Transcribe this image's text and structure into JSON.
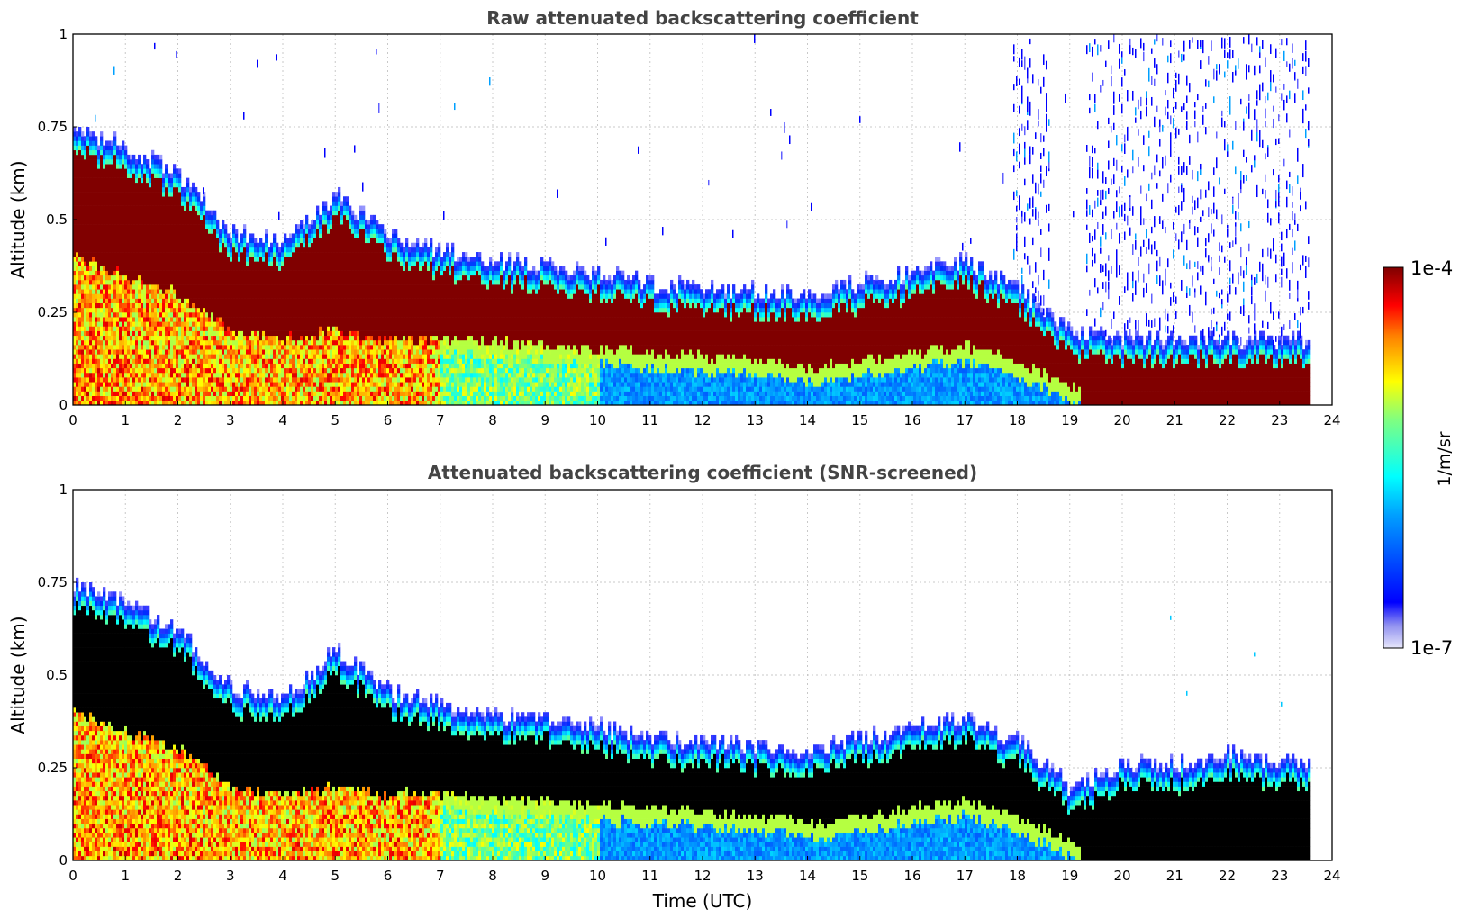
{
  "chart_data": [
    {
      "type": "heatmap",
      "title": "Raw attenuated backscattering coefficient",
      "xlabel": "",
      "ylabel": "Altitude (km)",
      "xlim": [
        0,
        24
      ],
      "ylim": [
        0,
        1
      ],
      "x_ticks": [
        "0",
        "1",
        "2",
        "3",
        "4",
        "5",
        "6",
        "7",
        "8",
        "9",
        "10",
        "11",
        "12",
        "13",
        "14",
        "15",
        "16",
        "17",
        "18",
        "19",
        "20",
        "21",
        "22",
        "23",
        "24"
      ],
      "y_ticks": [
        "0",
        "0.25",
        "0.5",
        "0.75",
        "1"
      ],
      "grid": true,
      "data_end_time": 23.55,
      "layer_top_km": [
        0.72,
        0.68,
        0.6,
        0.45,
        0.42,
        0.55,
        0.44,
        0.4,
        0.37,
        0.36,
        0.34,
        0.31,
        0.3,
        0.29,
        0.28,
        0.31,
        0.34,
        0.37,
        0.3,
        0.18,
        0.16,
        0.16,
        0.16,
        0.16,
        0.16
      ],
      "layer_bottom_km": [
        0.4,
        0.35,
        0.3,
        0.2,
        0.18,
        0.2,
        0.18,
        0.18,
        0.17,
        0.16,
        0.15,
        0.14,
        0.13,
        0.12,
        0.1,
        0.12,
        0.14,
        0.16,
        0.12,
        0.05,
        0.0,
        0.0,
        0.0,
        0.0,
        0.0
      ],
      "noise": "sparse speckle above layer, dense speckle 19.3-23.5 UTC"
    },
    {
      "type": "heatmap",
      "title": "Attenuated backscattering coefficient (SNR-screened)",
      "xlabel": "Time (UTC)",
      "ylabel": "Altitude (km)",
      "xlim": [
        0,
        24
      ],
      "ylim": [
        0,
        1
      ],
      "x_ticks": [
        "0",
        "1",
        "2",
        "3",
        "4",
        "5",
        "6",
        "7",
        "8",
        "9",
        "10",
        "11",
        "12",
        "13",
        "14",
        "15",
        "16",
        "17",
        "18",
        "19",
        "20",
        "21",
        "22",
        "23",
        "24"
      ],
      "y_ticks": [
        "0",
        "0.25",
        "0.5",
        "0.75",
        "1"
      ],
      "grid": true,
      "data_end_time": 23.55,
      "layer_top_km": [
        0.72,
        0.68,
        0.6,
        0.45,
        0.42,
        0.55,
        0.44,
        0.4,
        0.37,
        0.36,
        0.34,
        0.31,
        0.3,
        0.29,
        0.28,
        0.31,
        0.34,
        0.37,
        0.3,
        0.18,
        0.24,
        0.24,
        0.27,
        0.25,
        0.25
      ],
      "layer_bottom_km": [
        0.4,
        0.35,
        0.3,
        0.2,
        0.18,
        0.2,
        0.18,
        0.18,
        0.17,
        0.16,
        0.15,
        0.14,
        0.13,
        0.12,
        0.1,
        0.12,
        0.14,
        0.16,
        0.12,
        0.05,
        0.0,
        0.0,
        0.0,
        0.0,
        0.0
      ],
      "saturated_color": "#000000"
    }
  ],
  "colorbar": {
    "max_label": "1e-4",
    "min_label": "1e-7",
    "unit_label": "1/m/sr",
    "colors": [
      "#e6e6fa",
      "#0000ff",
      "#00ffff",
      "#ffff00",
      "#ff0000",
      "#800000"
    ]
  }
}
